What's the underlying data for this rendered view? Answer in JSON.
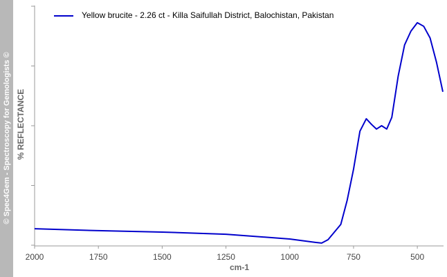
{
  "chart_data": {
    "type": "line",
    "watermark": "© Spec4Gem - Spectroscopy for Gemologists ©",
    "xlabel": "cm-1",
    "ylabel": "% REFLECTANCE",
    "x": [
      2000,
      1750,
      1500,
      1250,
      1000,
      900,
      875,
      850,
      800,
      775,
      750,
      725,
      700,
      680,
      660,
      640,
      620,
      600,
      575,
      550,
      525,
      500,
      475,
      450,
      425,
      400
    ],
    "series": [
      {
        "name": "Yellow brucite - 2.26 ct - Killa Saifullah District, Balochistan, Pakistan",
        "color": "#0000cc",
        "values": [
          6.9,
          6.1,
          5.5,
          4.6,
          2.6,
          1.2,
          0.9,
          2.3,
          8.7,
          18.8,
          31.8,
          47.7,
          52.9,
          50.6,
          48.6,
          50,
          48.6,
          53.5,
          70.8,
          83.8,
          89.6,
          93.1,
          91.6,
          86.7,
          76.6,
          64.2
        ]
      }
    ],
    "xlim": [
      2000,
      400
    ],
    "xticks": [
      2000,
      1750,
      1500,
      1250,
      1000,
      750,
      500
    ],
    "ylim": [
      0,
      100
    ],
    "yticks": [
      0,
      25,
      50,
      75,
      100
    ],
    "ytick_labels": false,
    "legend": "top-left"
  }
}
